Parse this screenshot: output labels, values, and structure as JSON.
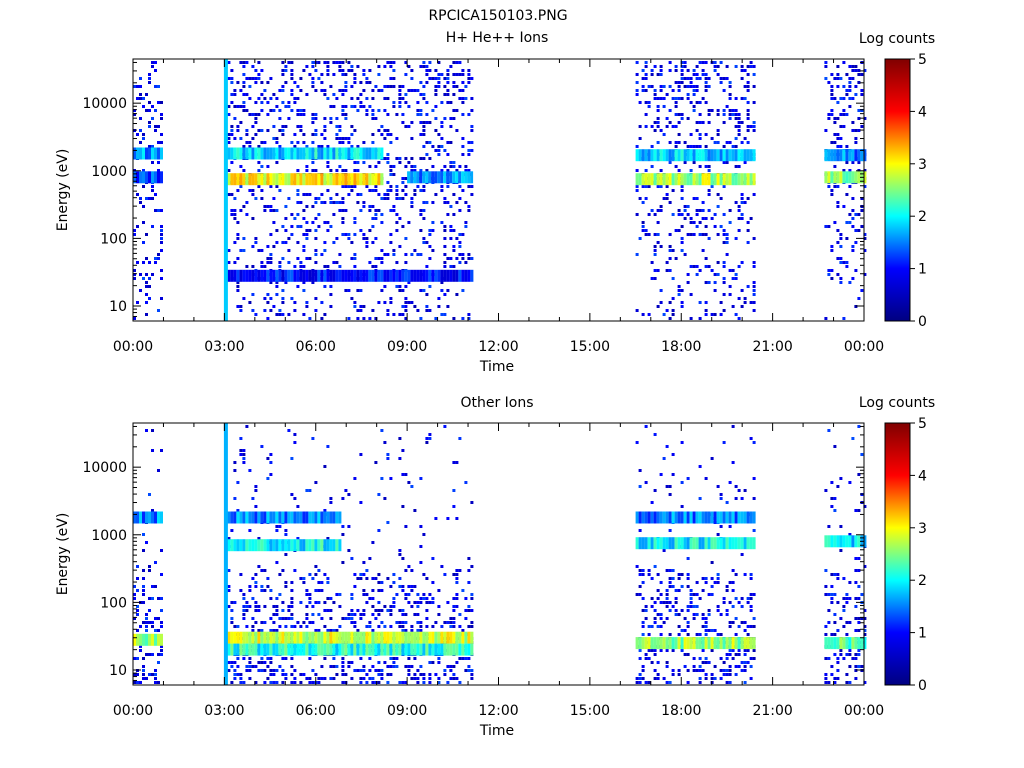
{
  "page_title": "RPCICA150103.PNG",
  "colorbar": {
    "label": "Log counts",
    "ticks": [
      "0",
      "1",
      "2",
      "3",
      "4",
      "5"
    ],
    "stops": [
      "#000080",
      "#0000ff",
      "#00ffff",
      "#ffff00",
      "#ff0000",
      "#800000"
    ]
  },
  "chart_data": [
    {
      "type": "heatmap",
      "title": "H+ He++ Ions",
      "xlabel": "Time",
      "ylabel": "Energy (eV)",
      "x_ticks": [
        "00:00",
        "03:00",
        "06:00",
        "09:00",
        "12:00",
        "15:00",
        "18:00",
        "21:00",
        "00:00"
      ],
      "xlim_hours": [
        0,
        24
      ],
      "y_scale": "log",
      "ylim": [
        6,
        45000
      ],
      "y_ticks": [
        {
          "label": "10",
          "value": 10
        },
        {
          "label": "100",
          "value": 100
        },
        {
          "label": "1000",
          "value": 1000
        },
        {
          "label": "10000",
          "value": 10000
        }
      ],
      "colorbar_range": [
        0,
        5
      ],
      "data_intervals_hours": [
        [
          0.0,
          0.9
        ],
        [
          3.0,
          11.1
        ],
        [
          16.5,
          20.4
        ],
        [
          22.7,
          24.0
        ]
      ],
      "spike": {
        "time_hours": 3.05,
        "level": 1.8
      },
      "bands": [
        {
          "start": 3.1,
          "end": 8.2,
          "energy_ev": 1800,
          "level": 1.9
        },
        {
          "start": 3.1,
          "end": 8.2,
          "energy_ev": 750,
          "level": 3.0
        },
        {
          "start": 0.0,
          "end": 0.9,
          "energy_ev": 1800,
          "level": 1.6
        },
        {
          "start": 0.0,
          "end": 0.9,
          "energy_ev": 800,
          "level": 1.3
        },
        {
          "start": 16.5,
          "end": 20.4,
          "energy_ev": 1700,
          "level": 1.8
        },
        {
          "start": 16.5,
          "end": 20.4,
          "energy_ev": 750,
          "level": 2.7
        },
        {
          "start": 22.7,
          "end": 24.0,
          "energy_ev": 1700,
          "level": 1.5
        },
        {
          "start": 22.7,
          "end": 24.0,
          "energy_ev": 800,
          "level": 2.6
        },
        {
          "start": 9.0,
          "end": 11.1,
          "energy_ev": 800,
          "level": 1.5
        },
        {
          "start": 3.0,
          "end": 11.1,
          "energy_ev": 28,
          "level": 1.0
        }
      ]
    },
    {
      "type": "heatmap",
      "title": "Other Ions",
      "xlabel": "Time",
      "ylabel": "Energy (eV)",
      "x_ticks": [
        "00:00",
        "03:00",
        "06:00",
        "09:00",
        "12:00",
        "15:00",
        "18:00",
        "21:00",
        "00:00"
      ],
      "xlim_hours": [
        0,
        24
      ],
      "y_scale": "log",
      "ylim": [
        6,
        45000
      ],
      "y_ticks": [
        {
          "label": "10",
          "value": 10
        },
        {
          "label": "100",
          "value": 100
        },
        {
          "label": "1000",
          "value": 1000
        },
        {
          "label": "10000",
          "value": 10000
        }
      ],
      "colorbar_range": [
        0,
        5
      ],
      "data_intervals_hours": [
        [
          0.0,
          0.9
        ],
        [
          3.0,
          11.1
        ],
        [
          16.5,
          20.4
        ],
        [
          22.7,
          24.0
        ]
      ],
      "spike": {
        "time_hours": 3.05,
        "level": 1.7
      },
      "bands": [
        {
          "start": 3.1,
          "end": 6.8,
          "energy_ev": 1800,
          "level": 1.5
        },
        {
          "start": 3.1,
          "end": 6.8,
          "energy_ev": 700,
          "level": 2.0
        },
        {
          "start": 0.0,
          "end": 0.9,
          "energy_ev": 1800,
          "level": 1.5
        },
        {
          "start": 3.0,
          "end": 11.1,
          "energy_ev": 30,
          "level": 2.8
        },
        {
          "start": 3.0,
          "end": 11.1,
          "energy_ev": 20,
          "level": 2.1
        },
        {
          "start": 0.0,
          "end": 0.9,
          "energy_ev": 28,
          "level": 2.6
        },
        {
          "start": 16.5,
          "end": 20.4,
          "energy_ev": 1800,
          "level": 1.5
        },
        {
          "start": 16.5,
          "end": 20.4,
          "energy_ev": 750,
          "level": 2.0
        },
        {
          "start": 16.5,
          "end": 20.4,
          "energy_ev": 25,
          "level": 2.6
        },
        {
          "start": 22.7,
          "end": 24.0,
          "energy_ev": 800,
          "level": 1.9
        },
        {
          "start": 22.7,
          "end": 24.0,
          "energy_ev": 25,
          "level": 2.3
        }
      ]
    }
  ]
}
